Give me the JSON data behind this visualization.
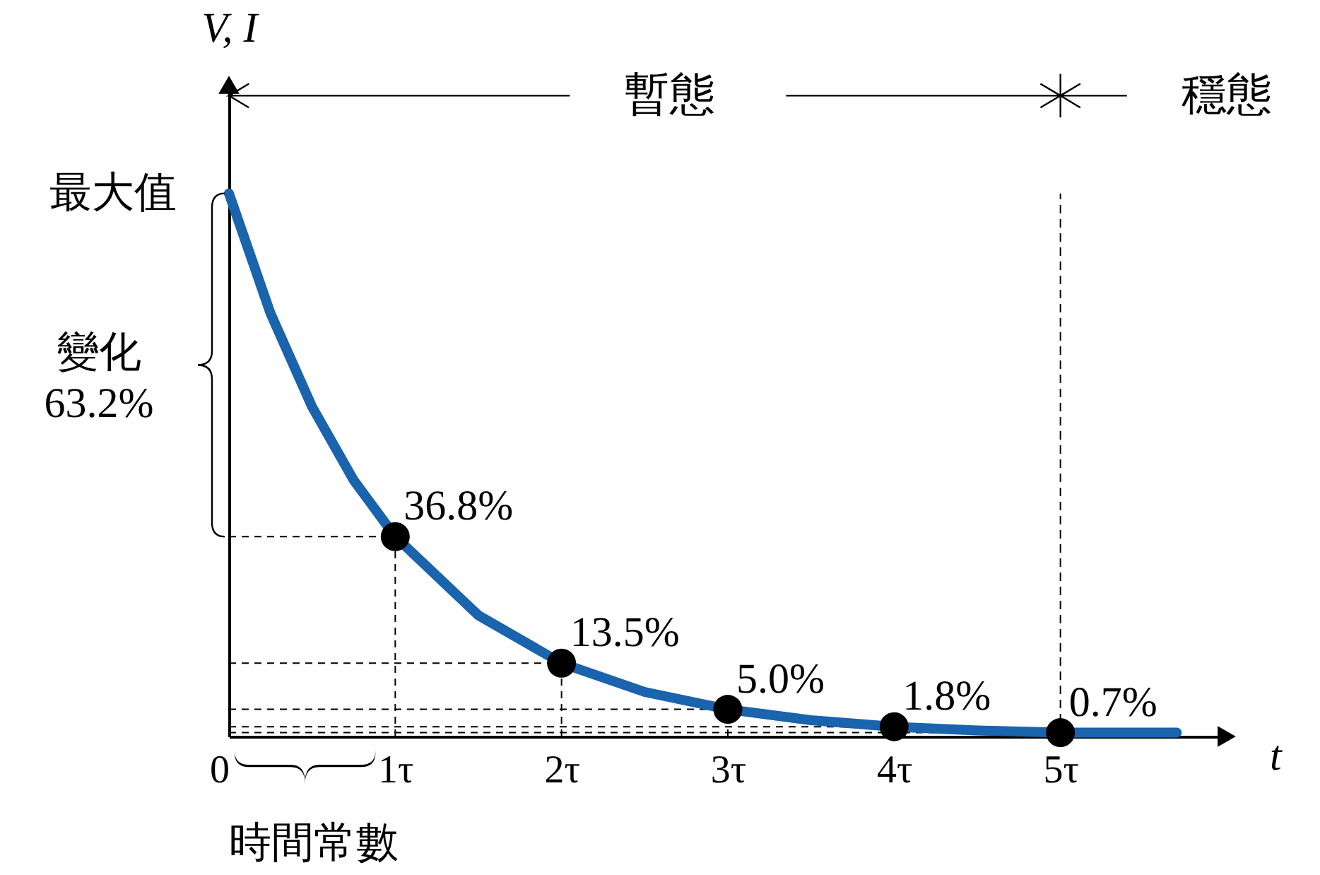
{
  "chart_data": {
    "type": "line",
    "xlabel": "t",
    "ylabel": "V, I",
    "xlim": [
      0,
      6
    ],
    "xticks": [
      {
        "value": 0,
        "label": "0"
      },
      {
        "value": 1,
        "label": "1τ"
      },
      {
        "value": 2,
        "label": "2τ"
      },
      {
        "value": 3,
        "label": "3τ"
      },
      {
        "value": 4,
        "label": "4τ"
      },
      {
        "value": 5,
        "label": "5τ"
      }
    ],
    "series": [
      {
        "type": "line",
        "color": "#1a63ad",
        "x": [
          0,
          0.25,
          0.5,
          0.75,
          1,
          1.5,
          2,
          2.5,
          3,
          3.5,
          4,
          4.5,
          5,
          5.7
        ],
        "values": [
          100,
          77.9,
          60.7,
          47.2,
          36.8,
          22.3,
          13.5,
          8.2,
          5.0,
          3.0,
          1.8,
          1.1,
          0.7,
          0.7
        ]
      },
      {
        "type": "scatter",
        "color": "#000000",
        "marker": "circle",
        "x": [
          1,
          2,
          3,
          4,
          5
        ],
        "values": [
          36.8,
          13.5,
          5.0,
          1.8,
          0.7
        ],
        "value_labels": [
          "36.8%",
          "13.5%",
          "5.0%",
          "1.8%",
          "0.7%"
        ]
      }
    ],
    "ref_lines": [
      {
        "axis": "x",
        "value": 5,
        "line_style": "dashed"
      }
    ],
    "annotations": [
      "暫態",
      "穩態",
      "最大值",
      "變化\n63.2%",
      "時間常數"
    ]
  }
}
